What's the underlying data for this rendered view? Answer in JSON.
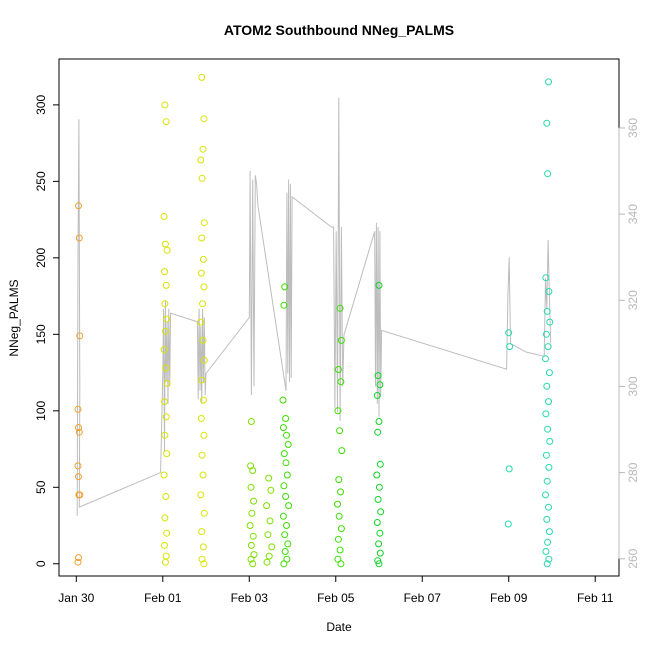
{
  "chart_data": {
    "type": "scatter",
    "title": "ATOM2 Southbound NNeg_PALMS",
    "xlabel": "Date",
    "ylabel": "NNeg_PALMS",
    "x_ticks": [
      "Jan 30",
      "Feb 01",
      "Feb 03",
      "Feb 05",
      "Feb 07",
      "Feb 09",
      "Feb 11"
    ],
    "y_ticks": [
      0,
      50,
      100,
      150,
      200,
      250,
      300
    ],
    "y_right_ticks": [
      260,
      280,
      300,
      320,
      340,
      360
    ],
    "xlim_days": [
      -2.4,
      10.55
    ],
    "ylim": [
      -8,
      330
    ],
    "y_right_lim": [
      256,
      376
    ],
    "point_series": [
      {
        "name": "",
        "color": "#f0a030",
        "points": [
          {
            "t": -1.95,
            "y": 234
          },
          {
            "t": -1.93,
            "y": 213
          },
          {
            "t": -1.92,
            "y": 149
          },
          {
            "t": -1.96,
            "y": 101
          },
          {
            "t": -1.95,
            "y": 89
          },
          {
            "t": -1.93,
            "y": 86
          },
          {
            "t": -1.96,
            "y": 64
          },
          {
            "t": -1.95,
            "y": 57
          },
          {
            "t": -1.94,
            "y": 45
          },
          {
            "t": -1.92,
            "y": 45
          },
          {
            "t": -1.95,
            "y": 4
          },
          {
            "t": -1.96,
            "y": 1
          }
        ]
      },
      {
        "name": "",
        "color": "#d8e400",
        "points": [
          {
            "t": 0.05,
            "y": 300
          },
          {
            "t": 0.08,
            "y": 289
          },
          {
            "t": 0.03,
            "y": 227
          },
          {
            "t": 0.06,
            "y": 209
          },
          {
            "t": 0.1,
            "y": 205
          },
          {
            "t": 0.04,
            "y": 191
          },
          {
            "t": 0.08,
            "y": 182
          },
          {
            "t": 0.05,
            "y": 170
          },
          {
            "t": 0.09,
            "y": 160
          },
          {
            "t": 0.06,
            "y": 152
          },
          {
            "t": 0.03,
            "y": 140
          },
          {
            "t": 0.07,
            "y": 128
          },
          {
            "t": 0.1,
            "y": 118
          },
          {
            "t": 0.04,
            "y": 106
          },
          {
            "t": 0.08,
            "y": 96
          },
          {
            "t": 0.05,
            "y": 84
          },
          {
            "t": 0.09,
            "y": 72
          },
          {
            "t": 0.03,
            "y": 58
          },
          {
            "t": 0.07,
            "y": 44
          },
          {
            "t": 0.05,
            "y": 30
          },
          {
            "t": 0.09,
            "y": 20
          },
          {
            "t": 0.04,
            "y": 12
          },
          {
            "t": 0.08,
            "y": 5
          },
          {
            "t": 0.06,
            "y": 1
          },
          {
            "t": 0.9,
            "y": 318
          },
          {
            "t": 0.95,
            "y": 291
          },
          {
            "t": 0.93,
            "y": 271
          },
          {
            "t": 0.88,
            "y": 264
          },
          {
            "t": 0.91,
            "y": 252
          },
          {
            "t": 0.96,
            "y": 223
          },
          {
            "t": 0.9,
            "y": 213
          },
          {
            "t": 0.94,
            "y": 199
          },
          {
            "t": 0.89,
            "y": 190
          },
          {
            "t": 0.95,
            "y": 181
          },
          {
            "t": 0.92,
            "y": 170
          },
          {
            "t": 0.88,
            "y": 158
          },
          {
            "t": 0.93,
            "y": 146
          },
          {
            "t": 0.96,
            "y": 133
          },
          {
            "t": 0.9,
            "y": 120
          },
          {
            "t": 0.94,
            "y": 107
          },
          {
            "t": 0.89,
            "y": 95
          },
          {
            "t": 0.95,
            "y": 84
          },
          {
            "t": 0.91,
            "y": 71
          },
          {
            "t": 0.93,
            "y": 58
          },
          {
            "t": 0.88,
            "y": 45
          },
          {
            "t": 0.96,
            "y": 33
          },
          {
            "t": 0.9,
            "y": 21
          },
          {
            "t": 0.94,
            "y": 11
          },
          {
            "t": 0.91,
            "y": 3
          },
          {
            "t": 0.95,
            "y": 0
          }
        ]
      },
      {
        "name": "",
        "color": "#7fe000",
        "points": [
          {
            "t": 2.05,
            "y": 93
          },
          {
            "t": 2.03,
            "y": 64
          },
          {
            "t": 2.08,
            "y": 61
          },
          {
            "t": 2.04,
            "y": 50
          },
          {
            "t": 2.1,
            "y": 41
          },
          {
            "t": 2.06,
            "y": 33
          },
          {
            "t": 2.02,
            "y": 25
          },
          {
            "t": 2.09,
            "y": 18
          },
          {
            "t": 2.05,
            "y": 12
          },
          {
            "t": 2.11,
            "y": 6
          },
          {
            "t": 2.04,
            "y": 3
          },
          {
            "t": 2.08,
            "y": 0
          },
          {
            "t": 2.45,
            "y": 56
          },
          {
            "t": 2.5,
            "y": 48
          },
          {
            "t": 2.4,
            "y": 38
          },
          {
            "t": 2.48,
            "y": 28
          },
          {
            "t": 2.43,
            "y": 19
          },
          {
            "t": 2.52,
            "y": 11
          },
          {
            "t": 2.46,
            "y": 5
          },
          {
            "t": 2.41,
            "y": 1
          }
        ]
      },
      {
        "name": "",
        "color": "#3cde00",
        "points": [
          {
            "t": 2.82,
            "y": 181
          },
          {
            "t": 2.8,
            "y": 169
          },
          {
            "t": 2.78,
            "y": 107
          },
          {
            "t": 2.84,
            "y": 95
          },
          {
            "t": 2.79,
            "y": 89
          },
          {
            "t": 2.86,
            "y": 84
          },
          {
            "t": 2.9,
            "y": 78
          },
          {
            "t": 2.81,
            "y": 72
          },
          {
            "t": 2.85,
            "y": 66
          },
          {
            "t": 2.88,
            "y": 58
          },
          {
            "t": 2.8,
            "y": 51
          },
          {
            "t": 2.84,
            "y": 44
          },
          {
            "t": 2.91,
            "y": 38
          },
          {
            "t": 2.79,
            "y": 31
          },
          {
            "t": 2.86,
            "y": 25
          },
          {
            "t": 2.82,
            "y": 19
          },
          {
            "t": 2.89,
            "y": 13
          },
          {
            "t": 2.83,
            "y": 8
          },
          {
            "t": 2.87,
            "y": 3
          },
          {
            "t": 2.8,
            "y": 0
          },
          {
            "t": 4.1,
            "y": 167
          },
          {
            "t": 4.13,
            "y": 146
          },
          {
            "t": 4.06,
            "y": 127
          },
          {
            "t": 4.12,
            "y": 119
          },
          {
            "t": 4.05,
            "y": 100
          },
          {
            "t": 4.09,
            "y": 87
          },
          {
            "t": 4.14,
            "y": 74
          },
          {
            "t": 4.07,
            "y": 55
          },
          {
            "t": 4.11,
            "y": 47
          },
          {
            "t": 4.04,
            "y": 39
          },
          {
            "t": 4.08,
            "y": 31
          },
          {
            "t": 4.13,
            "y": 23
          },
          {
            "t": 4.06,
            "y": 16
          },
          {
            "t": 4.1,
            "y": 9
          },
          {
            "t": 4.05,
            "y": 3
          },
          {
            "t": 4.12,
            "y": 0
          }
        ]
      },
      {
        "name": "",
        "color": "#10d428",
        "points": [
          {
            "t": 5.0,
            "y": 182
          },
          {
            "t": 4.98,
            "y": 123
          },
          {
            "t": 5.02,
            "y": 117
          },
          {
            "t": 4.96,
            "y": 110
          },
          {
            "t": 5.0,
            "y": 93
          },
          {
            "t": 4.97,
            "y": 86
          },
          {
            "t": 5.03,
            "y": 65
          },
          {
            "t": 4.95,
            "y": 58
          },
          {
            "t": 5.01,
            "y": 50
          },
          {
            "t": 4.98,
            "y": 42
          },
          {
            "t": 5.04,
            "y": 34
          },
          {
            "t": 4.96,
            "y": 27
          },
          {
            "t": 5.02,
            "y": 20
          },
          {
            "t": 4.99,
            "y": 13
          },
          {
            "t": 5.03,
            "y": 7
          },
          {
            "t": 4.97,
            "y": 2
          },
          {
            "t": 5.0,
            "y": 0
          }
        ]
      },
      {
        "name": "",
        "color": "#28d8b0",
        "points": [
          {
            "t": 8.0,
            "y": 151
          },
          {
            "t": 8.02,
            "y": 142
          },
          {
            "t": 8.01,
            "y": 62
          },
          {
            "t": 7.99,
            "y": 26
          },
          {
            "t": 8.92,
            "y": 315
          },
          {
            "t": 8.88,
            "y": 288
          },
          {
            "t": 8.9,
            "y": 255
          },
          {
            "t": 8.86,
            "y": 187
          },
          {
            "t": 8.93,
            "y": 178
          },
          {
            "t": 8.89,
            "y": 165
          },
          {
            "t": 8.95,
            "y": 158
          },
          {
            "t": 8.87,
            "y": 150
          },
          {
            "t": 8.91,
            "y": 142
          },
          {
            "t": 8.85,
            "y": 134
          },
          {
            "t": 8.94,
            "y": 125
          },
          {
            "t": 8.88,
            "y": 116
          },
          {
            "t": 8.92,
            "y": 106
          },
          {
            "t": 8.86,
            "y": 98
          },
          {
            "t": 8.9,
            "y": 88
          },
          {
            "t": 8.95,
            "y": 80
          },
          {
            "t": 8.87,
            "y": 71
          },
          {
            "t": 8.93,
            "y": 63
          },
          {
            "t": 8.89,
            "y": 54
          },
          {
            "t": 8.85,
            "y": 45
          },
          {
            "t": 8.92,
            "y": 37
          },
          {
            "t": 8.88,
            "y": 29
          },
          {
            "t": 8.94,
            "y": 21
          },
          {
            "t": 8.9,
            "y": 14
          },
          {
            "t": 8.86,
            "y": 8
          },
          {
            "t": 8.93,
            "y": 3
          },
          {
            "t": 8.89,
            "y": 0
          }
        ]
      }
    ],
    "trace_series": {
      "name": "",
      "color": "#bdbdbd",
      "points": [
        {
          "t": -1.98,
          "y": 270
        },
        {
          "t": -1.96,
          "y": 330
        },
        {
          "t": -1.94,
          "y": 362
        },
        {
          "t": -1.92,
          "y": 300
        },
        {
          "t": -1.93,
          "y": 272
        },
        {
          "t": -0.05,
          "y": 280
        },
        {
          "t": 0.0,
          "y": 303
        },
        {
          "t": 0.02,
          "y": 318
        },
        {
          "t": 0.04,
          "y": 285
        },
        {
          "t": 0.06,
          "y": 320
        },
        {
          "t": 0.08,
          "y": 301
        },
        {
          "t": 0.1,
          "y": 315
        },
        {
          "t": 0.12,
          "y": 296
        },
        {
          "t": 0.14,
          "y": 318
        },
        {
          "t": 0.16,
          "y": 300
        },
        {
          "t": 0.18,
          "y": 317
        },
        {
          "t": 0.8,
          "y": 315
        },
        {
          "t": 0.82,
          "y": 297
        },
        {
          "t": 0.84,
          "y": 318
        },
        {
          "t": 0.86,
          "y": 299
        },
        {
          "t": 0.88,
          "y": 314
        },
        {
          "t": 0.9,
          "y": 296
        },
        {
          "t": 0.92,
          "y": 318
        },
        {
          "t": 0.94,
          "y": 301
        },
        {
          "t": 0.96,
          "y": 316
        },
        {
          "t": 0.98,
          "y": 298
        },
        {
          "t": 1.0,
          "y": 303
        },
        {
          "t": 2.0,
          "y": 316
        },
        {
          "t": 2.02,
          "y": 350
        },
        {
          "t": 2.05,
          "y": 298
        },
        {
          "t": 2.08,
          "y": 348
        },
        {
          "t": 2.11,
          "y": 300
        },
        {
          "t": 2.14,
          "y": 349
        },
        {
          "t": 2.17,
          "y": 347
        },
        {
          "t": 2.2,
          "y": 342
        },
        {
          "t": 2.85,
          "y": 299
        },
        {
          "t": 2.87,
          "y": 345
        },
        {
          "t": 2.89,
          "y": 303
        },
        {
          "t": 2.91,
          "y": 348
        },
        {
          "t": 2.93,
          "y": 301
        },
        {
          "t": 2.95,
          "y": 347
        },
        {
          "t": 2.97,
          "y": 302
        },
        {
          "t": 2.99,
          "y": 344
        },
        {
          "t": 3.9,
          "y": 337
        },
        {
          "t": 3.95,
          "y": 337
        },
        {
          "t": 3.98,
          "y": 295
        },
        {
          "t": 4.01,
          "y": 336
        },
        {
          "t": 4.04,
          "y": 294
        },
        {
          "t": 4.07,
          "y": 367
        },
        {
          "t": 4.1,
          "y": 292
        },
        {
          "t": 4.13,
          "y": 337
        },
        {
          "t": 4.16,
          "y": 300
        },
        {
          "t": 4.19,
          "y": 312
        },
        {
          "t": 4.9,
          "y": 336
        },
        {
          "t": 4.92,
          "y": 300
        },
        {
          "t": 4.94,
          "y": 338
        },
        {
          "t": 4.96,
          "y": 296
        },
        {
          "t": 4.98,
          "y": 337
        },
        {
          "t": 5.0,
          "y": 293
        },
        {
          "t": 5.02,
          "y": 336
        },
        {
          "t": 5.04,
          "y": 298
        },
        {
          "t": 5.06,
          "y": 313
        },
        {
          "t": 7.95,
          "y": 304
        },
        {
          "t": 7.98,
          "y": 321
        },
        {
          "t": 8.01,
          "y": 330
        },
        {
          "t": 8.04,
          "y": 310
        },
        {
          "t": 8.4,
          "y": 308
        },
        {
          "t": 8.82,
          "y": 307
        },
        {
          "t": 8.85,
          "y": 325
        },
        {
          "t": 8.88,
          "y": 318
        },
        {
          "t": 8.91,
          "y": 334
        },
        {
          "t": 8.94,
          "y": 321
        },
        {
          "t": 8.97,
          "y": 310
        }
      ]
    }
  }
}
